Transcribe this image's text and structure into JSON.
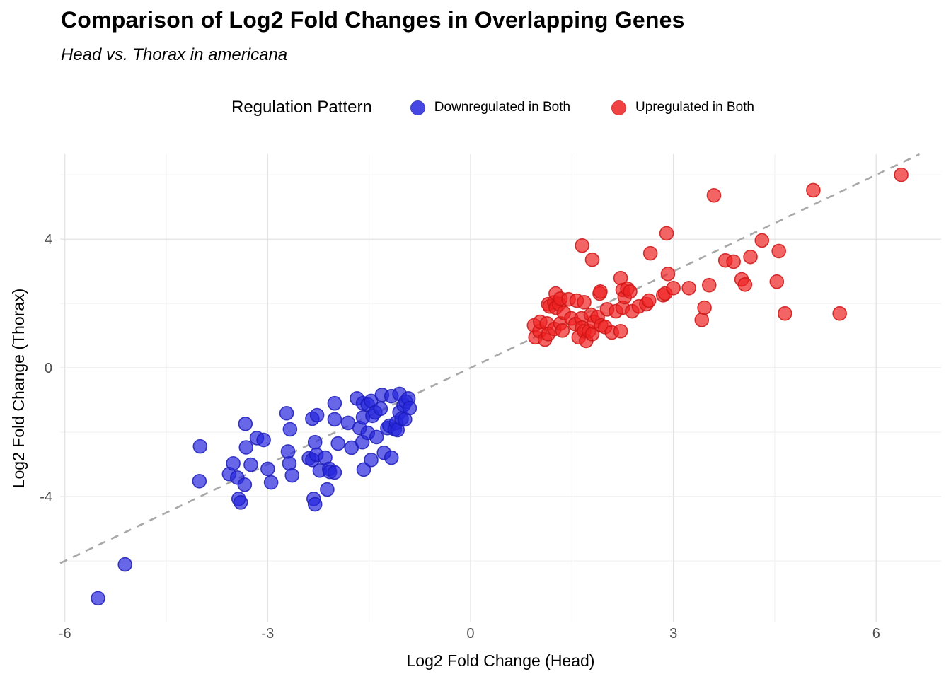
{
  "title": "Comparison of Log2 Fold Changes in Overlapping Genes",
  "subtitle": "Head vs. Thorax in americana",
  "legend": {
    "title": "Regulation Pattern",
    "items": [
      {
        "label": "Downregulated in Both",
        "fill": "#2626dd",
        "stroke": "#1c1cb8"
      },
      {
        "label": "Upregulated in Both",
        "fill": "#ee2222",
        "stroke": "#cc1414"
      }
    ]
  },
  "chart_data": {
    "type": "scatter",
    "title": "Comparison of Log2 Fold Changes in Overlapping Genes",
    "subtitle": "Head vs. Thorax in americana",
    "xlabel": "Log2 Fold Change (Head)",
    "ylabel": "Log2 Fold Change (Thorax)",
    "xlim": [
      -6.07,
      6.96
    ],
    "ylim": [
      -7.91,
      6.64
    ],
    "x_ticks": [
      -6,
      -3,
      0,
      3,
      6
    ],
    "y_ticks": [
      -4,
      0,
      4
    ],
    "x_minor_ticks": [
      -4.5,
      -1.5,
      1.5,
      4.5
    ],
    "y_minor_ticks": [
      -6,
      -2,
      2,
      6
    ],
    "grid": true,
    "legend_position": "top",
    "identity_line": {
      "slope": 1,
      "intercept": 0,
      "style": "dashed",
      "color": "#a8a8a8"
    },
    "point_alpha": 0.7,
    "colors": {
      "major_grid": "#e3e3e3",
      "minor_grid": "#f0f0f0",
      "tick_text": "#4d4d4d",
      "axis_title": "#000000"
    },
    "series": [
      {
        "name": "Downregulated in Both",
        "fill": "#2626dd",
        "stroke": "#1c1cb8",
        "points": [
          [
            -5.51,
            -7.16
          ],
          [
            -5.11,
            -6.11
          ],
          [
            -4.0,
            -2.44
          ],
          [
            -4.01,
            -3.52
          ],
          [
            -3.57,
            -3.3
          ],
          [
            -3.51,
            -2.97
          ],
          [
            -3.45,
            -3.41
          ],
          [
            -3.43,
            -4.07
          ],
          [
            -3.4,
            -4.18
          ],
          [
            -3.33,
            -1.74
          ],
          [
            -3.34,
            -3.63
          ],
          [
            -3.32,
            -2.47
          ],
          [
            -3.25,
            -3.01
          ],
          [
            -3.16,
            -2.18
          ],
          [
            -3.06,
            -2.24
          ],
          [
            -3.0,
            -3.14
          ],
          [
            -2.95,
            -3.56
          ],
          [
            -2.72,
            -1.41
          ],
          [
            -2.7,
            -2.6
          ],
          [
            -2.68,
            -2.97
          ],
          [
            -2.67,
            -1.91
          ],
          [
            -2.64,
            -3.34
          ],
          [
            -2.39,
            -2.81
          ],
          [
            -2.34,
            -1.58
          ],
          [
            -2.34,
            -2.86
          ],
          [
            -2.32,
            -4.07
          ],
          [
            -2.3,
            -2.31
          ],
          [
            -2.3,
            -4.24
          ],
          [
            -2.28,
            -2.7
          ],
          [
            -2.27,
            -1.47
          ],
          [
            -2.23,
            -3.19
          ],
          [
            -2.15,
            -2.79
          ],
          [
            -2.12,
            -3.78
          ],
          [
            -2.09,
            -3.14
          ],
          [
            -2.08,
            -3.23
          ],
          [
            -2.01,
            -1.1
          ],
          [
            -2.01,
            -1.6
          ],
          [
            -2.01,
            -3.25
          ],
          [
            -1.96,
            -2.35
          ],
          [
            -1.81,
            -1.71
          ],
          [
            -1.76,
            -2.48
          ],
          [
            -1.68,
            -0.95
          ],
          [
            -1.64,
            -1.87
          ],
          [
            -1.6,
            -2.31
          ],
          [
            -1.59,
            -1.1
          ],
          [
            -1.59,
            -1.54
          ],
          [
            -1.58,
            -3.16
          ],
          [
            -1.52,
            -1.14
          ],
          [
            -1.52,
            -2.02
          ],
          [
            -1.47,
            -1.03
          ],
          [
            -1.47,
            -2.86
          ],
          [
            -1.45,
            -1.49
          ],
          [
            -1.41,
            -1.38
          ],
          [
            -1.39,
            -2.15
          ],
          [
            -1.33,
            -1.27
          ],
          [
            -1.31,
            -0.84
          ],
          [
            -1.28,
            -2.64
          ],
          [
            -1.23,
            -1.87
          ],
          [
            -1.2,
            -1.8
          ],
          [
            -1.17,
            -0.88
          ],
          [
            -1.17,
            -2.79
          ],
          [
            -1.12,
            -1.91
          ],
          [
            -1.1,
            -1.71
          ],
          [
            -1.08,
            -1.93
          ],
          [
            -1.05,
            -0.81
          ],
          [
            -1.05,
            -1.38
          ],
          [
            -1.02,
            -1.58
          ],
          [
            -0.99,
            -1.16
          ],
          [
            -0.97,
            -1.6
          ],
          [
            -0.96,
            -1.05
          ],
          [
            -0.92,
            -0.95
          ],
          [
            -0.9,
            -1.25
          ]
        ]
      },
      {
        "name": "Upregulated in Both",
        "fill": "#ee2222",
        "stroke": "#cc1414",
        "points": [
          [
            0.94,
            1.32
          ],
          [
            0.96,
            0.95
          ],
          [
            1.02,
            1.14
          ],
          [
            1.03,
            1.43
          ],
          [
            1.1,
            0.88
          ],
          [
            1.13,
            1.38
          ],
          [
            1.15,
            1.05
          ],
          [
            1.15,
            1.98
          ],
          [
            1.17,
            1.91
          ],
          [
            1.24,
            1.21
          ],
          [
            1.24,
            2.04
          ],
          [
            1.26,
            1.87
          ],
          [
            1.26,
            2.31
          ],
          [
            1.31,
            1.98
          ],
          [
            1.33,
            1.38
          ],
          [
            1.33,
            2.15
          ],
          [
            1.36,
            1.16
          ],
          [
            1.38,
            1.71
          ],
          [
            1.45,
            2.13
          ],
          [
            1.49,
            1.54
          ],
          [
            1.55,
            1.36
          ],
          [
            1.57,
            2.09
          ],
          [
            1.6,
            0.95
          ],
          [
            1.64,
            1.54
          ],
          [
            1.65,
            1.25
          ],
          [
            1.65,
            3.8
          ],
          [
            1.68,
            1.14
          ],
          [
            1.68,
            2.04
          ],
          [
            1.71,
            0.84
          ],
          [
            1.75,
            1.14
          ],
          [
            1.78,
            1.65
          ],
          [
            1.8,
            1.05
          ],
          [
            1.8,
            3.36
          ],
          [
            1.83,
            1.43
          ],
          [
            1.88,
            1.58
          ],
          [
            1.91,
            2.31
          ],
          [
            1.92,
            2.37
          ],
          [
            1.93,
            1.32
          ],
          [
            1.99,
            1.27
          ],
          [
            2.02,
            1.82
          ],
          [
            2.09,
            1.1
          ],
          [
            2.15,
            1.76
          ],
          [
            2.22,
            1.14
          ],
          [
            2.22,
            2.79
          ],
          [
            2.25,
            1.87
          ],
          [
            2.25,
            2.42
          ],
          [
            2.28,
            2.2
          ],
          [
            2.32,
            2.46
          ],
          [
            2.36,
            2.37
          ],
          [
            2.39,
            1.76
          ],
          [
            2.49,
            1.91
          ],
          [
            2.6,
            1.98
          ],
          [
            2.64,
            2.09
          ],
          [
            2.66,
            3.56
          ],
          [
            2.85,
            2.26
          ],
          [
            2.88,
            2.31
          ],
          [
            2.9,
            4.18
          ],
          [
            2.92,
            2.92
          ],
          [
            3.0,
            2.48
          ],
          [
            3.23,
            2.48
          ],
          [
            3.42,
            1.49
          ],
          [
            3.46,
            1.87
          ],
          [
            3.53,
            2.57
          ],
          [
            3.6,
            5.36
          ],
          [
            3.77,
            3.34
          ],
          [
            3.89,
            3.3
          ],
          [
            4.01,
            2.75
          ],
          [
            4.06,
            2.59
          ],
          [
            4.14,
            3.45
          ],
          [
            4.31,
            3.96
          ],
          [
            4.53,
            2.68
          ],
          [
            4.56,
            3.63
          ],
          [
            4.65,
            1.69
          ],
          [
            5.07,
            5.52
          ],
          [
            5.46,
            1.69
          ],
          [
            6.37,
            6.0
          ]
        ]
      }
    ]
  }
}
